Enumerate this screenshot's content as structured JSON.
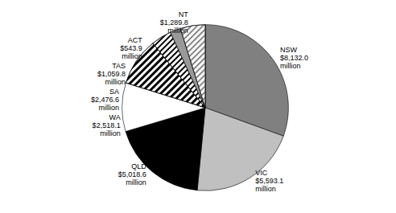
{
  "chart_data": {
    "type": "pie",
    "categories": [
      "NSW",
      "VIC",
      "QLD",
      "WA",
      "SA",
      "TAS",
      "ACT",
      "NT"
    ],
    "values": [
      8132.0,
      5593.1,
      5018.6,
      2518.1,
      2476.6,
      1059.8,
      543.9,
      1289.8
    ],
    "value_labels": [
      "$8,132.0 million",
      "$5,593.1 million",
      "$5,018.6 million",
      "$2,518.1 million",
      "$2,476.6 million",
      "$1,059.8 million",
      "$543.9 million",
      "$1,289.8 million"
    ],
    "colors": [
      "#808080",
      "#c0c0c0",
      "#000000",
      "#ffffff",
      "#ffffff",
      "#ffffff",
      "#999999",
      "#ffffff"
    ],
    "data_labels": true
  }
}
